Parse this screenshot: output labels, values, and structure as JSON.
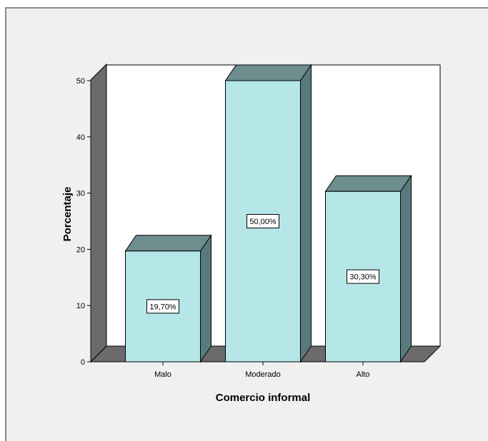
{
  "chart_data": {
    "type": "bar",
    "categories": [
      "Malo",
      "Moderado",
      "Alto"
    ],
    "values": [
      19.7,
      50.0,
      30.3
    ],
    "data_labels": [
      "19,70%",
      "50,00%",
      "30,30%"
    ],
    "xlabel": "Comercio informal",
    "ylabel": "Porcentaje",
    "ylim": [
      0,
      50
    ],
    "yticks": [
      0,
      10,
      20,
      30,
      40,
      50
    ],
    "grid": false,
    "three_d": true,
    "colors": {
      "bar_front": "#b5e6e8",
      "bar_top": "#6d8d8f",
      "bar_side": "#587a7d",
      "wall_left": "#6b6b6b",
      "floor": "#6b6b6b",
      "plot_bg": "#ffffff",
      "panel_bg": "#f0f0f0"
    }
  }
}
